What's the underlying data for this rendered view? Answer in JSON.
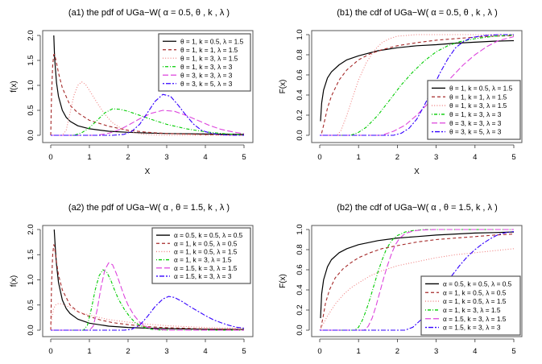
{
  "chart_data": [
    {
      "id": "a1",
      "type": "line",
      "title": "(a1) the pdf of UGa−W( α = 0.5, θ , k , λ )",
      "xlabel": "X",
      "ylabel": "f(x)",
      "xlim": [
        0,
        5
      ],
      "ylim": [
        0,
        2
      ],
      "xticks": [
        "0",
        "1",
        "2",
        "3",
        "4",
        "5"
      ],
      "yticks": [
        "0.0",
        "0.5",
        "1.0",
        "1.5",
        "2.0"
      ],
      "legend_position": "top-right",
      "series": [
        {
          "name": "θ = 1, k = 0.5, λ = 1.5",
          "color": "#000000",
          "dash": "solid",
          "x": [
            0.08,
            0.1,
            0.15,
            0.2,
            0.3,
            0.4,
            0.5,
            0.7,
            1.0,
            1.5,
            2,
            2.5,
            3,
            4,
            5
          ],
          "y": [
            2.0,
            1.55,
            1.05,
            0.78,
            0.5,
            0.36,
            0.28,
            0.19,
            0.13,
            0.08,
            0.06,
            0.045,
            0.035,
            0.025,
            0.02
          ]
        },
        {
          "name": "θ = 1, k = 1, λ = 1.5",
          "color": "#a52a2a",
          "dash": "dashed",
          "x": [
            0.0,
            0.02,
            0.05,
            0.08,
            0.1,
            0.15,
            0.2,
            0.3,
            0.5,
            0.7,
            1.0,
            1.5,
            2,
            2.5,
            3,
            4,
            5
          ],
          "y": [
            0,
            0.8,
            1.4,
            1.62,
            1.62,
            1.45,
            1.25,
            0.95,
            0.6,
            0.45,
            0.3,
            0.18,
            0.1,
            0.06,
            0.035,
            0.015,
            0.005
          ]
        },
        {
          "name": "θ = 1, k = 3, λ = 1.5",
          "color": "#f08080",
          "dash": "dotted",
          "x": [
            0,
            0.3,
            0.4,
            0.5,
            0.6,
            0.7,
            0.8,
            0.9,
            1.0,
            1.2,
            1.4,
            1.6,
            1.8,
            2.0,
            2.3,
            2.6,
            3,
            4,
            5
          ],
          "y": [
            0,
            0,
            0.1,
            0.45,
            0.8,
            1.0,
            1.07,
            1.02,
            0.9,
            0.65,
            0.42,
            0.25,
            0.15,
            0.08,
            0.03,
            0.01,
            0,
            0,
            0
          ]
        },
        {
          "name": "θ = 1, k = 3, λ = 3",
          "color": "#00cc00",
          "dash": "dotdash",
          "x": [
            0,
            0.6,
            0.8,
            1.0,
            1.2,
            1.4,
            1.6,
            1.8,
            2.0,
            2.3,
            2.6,
            3.0,
            3.5,
            4.0,
            4.5,
            5.0
          ],
          "y": [
            0,
            0,
            0.05,
            0.15,
            0.3,
            0.45,
            0.53,
            0.52,
            0.48,
            0.4,
            0.32,
            0.22,
            0.13,
            0.07,
            0.03,
            0.01
          ]
        },
        {
          "name": "θ = 3, k = 3, λ = 3",
          "color": "#dd44dd",
          "dash": "longdash",
          "x": [
            0,
            1.2,
            1.5,
            1.8,
            2.0,
            2.3,
            2.6,
            2.9,
            3.2,
            3.5,
            3.8,
            4.1,
            4.4,
            4.7,
            5.0
          ],
          "y": [
            0,
            0,
            0.04,
            0.12,
            0.2,
            0.33,
            0.44,
            0.5,
            0.48,
            0.4,
            0.3,
            0.2,
            0.12,
            0.07,
            0.03
          ]
        },
        {
          "name": "θ = 3, k = 5, λ = 3",
          "color": "#3300ff",
          "dash": "twodash",
          "x": [
            0,
            1.6,
            1.9,
            2.1,
            2.3,
            2.5,
            2.7,
            2.9,
            3.1,
            3.3,
            3.5,
            3.7,
            3.9,
            4.1,
            4.4,
            4.7,
            5.0
          ],
          "y": [
            0,
            0,
            0.02,
            0.08,
            0.22,
            0.45,
            0.68,
            0.82,
            0.78,
            0.6,
            0.4,
            0.22,
            0.1,
            0.05,
            0.01,
            0,
            0
          ]
        }
      ]
    },
    {
      "id": "b1",
      "type": "line",
      "title": "(b1) the cdf of UGa−W( α = 0.5, θ , k , λ )",
      "xlabel": "X",
      "ylabel": "F(x)",
      "xlim": [
        0,
        5
      ],
      "ylim": [
        0,
        1
      ],
      "xticks": [
        "0",
        "1",
        "2",
        "3",
        "4",
        "5"
      ],
      "yticks": [
        "0.0",
        "0.2",
        "0.4",
        "0.6",
        "0.8",
        "1.0"
      ],
      "legend_position": "bottom-right",
      "series": [
        {
          "name": "θ = 1, k = 0.5, λ = 1.5",
          "color": "#000000",
          "dash": "solid",
          "x": [
            0.02,
            0.05,
            0.1,
            0.2,
            0.3,
            0.5,
            0.7,
            1.0,
            1.5,
            2,
            2.5,
            3,
            3.5,
            4,
            4.5,
            5
          ],
          "y": [
            0.14,
            0.32,
            0.45,
            0.57,
            0.63,
            0.7,
            0.75,
            0.79,
            0.84,
            0.87,
            0.89,
            0.9,
            0.915,
            0.925,
            0.935,
            0.94
          ]
        },
        {
          "name": "θ = 1, k = 1, λ = 1.5",
          "color": "#a52a2a",
          "dash": "dashed",
          "x": [
            0.05,
            0.1,
            0.2,
            0.3,
            0.5,
            0.7,
            1.0,
            1.3,
            1.6,
            2,
            2.5,
            3,
            3.5,
            4,
            4.5,
            5
          ],
          "y": [
            0.02,
            0.1,
            0.27,
            0.39,
            0.55,
            0.65,
            0.75,
            0.81,
            0.85,
            0.89,
            0.92,
            0.945,
            0.96,
            0.975,
            0.985,
            0.99
          ]
        },
        {
          "name": "θ = 1, k = 3, λ = 1.5",
          "color": "#f08080",
          "dash": "dotted",
          "x": [
            0,
            0.45,
            0.55,
            0.7,
            0.85,
            1.0,
            1.2,
            1.4,
            1.6,
            1.8,
            2.0,
            2.5,
            3,
            4,
            5
          ],
          "y": [
            0,
            0,
            0.05,
            0.2,
            0.38,
            0.55,
            0.72,
            0.84,
            0.92,
            0.96,
            0.985,
            1.0,
            1.0,
            1.0,
            1.0
          ]
        },
        {
          "name": "θ = 1, k = 3, λ = 3",
          "color": "#00cc00",
          "dash": "dotdash",
          "x": [
            0,
            0.8,
            1.0,
            1.2,
            1.5,
            1.8,
            2.1,
            2.4,
            2.7,
            3.0,
            3.3,
            3.6,
            4.0,
            4.5,
            5.0
          ],
          "y": [
            0,
            0,
            0.03,
            0.08,
            0.2,
            0.35,
            0.5,
            0.63,
            0.74,
            0.83,
            0.89,
            0.93,
            0.96,
            0.985,
            0.995
          ]
        },
        {
          "name": "θ = 3, k = 3, λ = 3",
          "color": "#dd44dd",
          "dash": "longdash",
          "x": [
            0,
            1.6,
            1.9,
            2.2,
            2.5,
            2.8,
            3.1,
            3.4,
            3.7,
            4.0,
            4.3,
            4.6,
            5.0
          ],
          "y": [
            0,
            0,
            0.04,
            0.1,
            0.2,
            0.32,
            0.45,
            0.58,
            0.7,
            0.8,
            0.88,
            0.94,
            0.98
          ]
        },
        {
          "name": "θ = 3, k = 5, λ = 3",
          "color": "#3300ff",
          "dash": "twodash",
          "x": [
            0,
            1.9,
            2.1,
            2.3,
            2.5,
            2.7,
            2.9,
            3.1,
            3.3,
            3.5,
            3.7,
            3.9,
            4.2,
            4.6,
            5.0
          ],
          "y": [
            0,
            0,
            0.02,
            0.07,
            0.16,
            0.3,
            0.46,
            0.62,
            0.76,
            0.87,
            0.93,
            0.97,
            0.99,
            1.0,
            1.0
          ]
        }
      ]
    },
    {
      "id": "a2",
      "type": "line",
      "title": "(a2) the pdf of UGa−W( α , θ = 1.5, k , λ )",
      "xlabel": "",
      "ylabel": "f(x)",
      "xlim": [
        0,
        5
      ],
      "ylim": [
        0,
        2
      ],
      "xticks": [
        "0",
        "1",
        "2",
        "3",
        "4",
        "5"
      ],
      "yticks": [
        "0.0",
        "0.5",
        "1.0",
        "1.5",
        "2.0"
      ],
      "legend_position": "top-right",
      "series": [
        {
          "name": "α = 0.5, k = 0.5, λ = 0.5",
          "color": "#000000",
          "dash": "solid",
          "x": [
            0.09,
            0.12,
            0.15,
            0.2,
            0.3,
            0.4,
            0.5,
            0.7,
            1.0,
            1.5,
            2,
            2.5,
            3,
            4,
            5
          ],
          "y": [
            2.0,
            1.6,
            1.3,
            0.95,
            0.6,
            0.43,
            0.33,
            0.22,
            0.14,
            0.08,
            0.055,
            0.04,
            0.03,
            0.02,
            0.015
          ]
        },
        {
          "name": "α = 1, k = 0.5, λ = 0.5",
          "color": "#a52a2a",
          "dash": "dashed",
          "x": [
            0.0,
            0.02,
            0.05,
            0.08,
            0.1,
            0.15,
            0.2,
            0.3,
            0.5,
            0.7,
            1.0,
            1.3,
            1.6,
            2,
            2.5,
            3,
            4,
            5
          ],
          "y": [
            0,
            0.9,
            1.5,
            1.7,
            1.65,
            1.35,
            1.1,
            0.8,
            0.5,
            0.37,
            0.27,
            0.2,
            0.15,
            0.11,
            0.07,
            0.05,
            0.025,
            0.015
          ]
        },
        {
          "name": "α = 1, k = 0.5, λ = 1.5",
          "color": "#f08080",
          "dash": "dotted",
          "x": [
            0.0,
            0.03,
            0.07,
            0.12,
            0.2,
            0.3,
            0.5,
            0.7,
            1.0,
            1.5,
            2,
            2.5,
            3,
            3.5,
            4,
            4.5,
            5
          ],
          "y": [
            0,
            0.25,
            0.42,
            0.5,
            0.53,
            0.52,
            0.45,
            0.37,
            0.3,
            0.21,
            0.16,
            0.12,
            0.09,
            0.07,
            0.055,
            0.045,
            0.04
          ]
        },
        {
          "name": "α = 1, k = 3, λ = 1.5",
          "color": "#00cc00",
          "dash": "dotdash",
          "x": [
            0,
            0.85,
            0.95,
            1.05,
            1.15,
            1.25,
            1.35,
            1.45,
            1.55,
            1.65,
            1.75,
            1.9,
            2.05,
            2.2,
            2.4,
            2.6,
            2.9,
            3.3,
            5
          ],
          "y": [
            0,
            0,
            0.1,
            0.42,
            0.8,
            1.08,
            1.2,
            1.15,
            1.0,
            0.8,
            0.62,
            0.42,
            0.26,
            0.14,
            0.06,
            0.02,
            0,
            0,
            0
          ]
        },
        {
          "name": "α = 1.5, k = 3, λ = 1.5",
          "color": "#dd44dd",
          "dash": "longdash",
          "x": [
            0,
            1.0,
            1.1,
            1.2,
            1.3,
            1.4,
            1.5,
            1.6,
            1.7,
            1.8,
            1.9,
            2.0,
            2.15,
            2.3,
            2.5,
            2.7,
            3.0,
            3.5,
            5
          ],
          "y": [
            0,
            0,
            0.08,
            0.4,
            0.85,
            1.2,
            1.34,
            1.3,
            1.12,
            0.9,
            0.68,
            0.5,
            0.3,
            0.16,
            0.06,
            0.02,
            0,
            0,
            0
          ]
        },
        {
          "name": "α = 1.5, k = 3, λ = 3",
          "color": "#3300ff",
          "dash": "twodash",
          "x": [
            0,
            1.9,
            2.1,
            2.3,
            2.5,
            2.7,
            2.9,
            3.05,
            3.2,
            3.4,
            3.6,
            3.8,
            4.0,
            4.2,
            4.4,
            4.6,
            4.8,
            5.0
          ],
          "y": [
            0,
            0,
            0.02,
            0.1,
            0.27,
            0.47,
            0.62,
            0.67,
            0.65,
            0.57,
            0.47,
            0.38,
            0.29,
            0.21,
            0.15,
            0.1,
            0.06,
            0.04
          ]
        }
      ]
    },
    {
      "id": "b2",
      "type": "line",
      "title": "(b2) the cdf of UGa−W( α , θ = 1.5, k , λ )",
      "xlabel": "",
      "ylabel": "F(x)",
      "xlim": [
        0,
        5
      ],
      "ylim": [
        0,
        1
      ],
      "xticks": [
        "0",
        "1",
        "2",
        "3",
        "4",
        "5"
      ],
      "yticks": [
        "0.0",
        "0.2",
        "0.4",
        "0.6",
        "0.8",
        "1.0"
      ],
      "legend_position": "bottom-right",
      "series": [
        {
          "name": "α = 0.5, k = 0.5, λ = 0.5",
          "color": "#000000",
          "dash": "solid",
          "x": [
            0.02,
            0.05,
            0.1,
            0.2,
            0.3,
            0.5,
            0.7,
            1.0,
            1.5,
            2,
            2.5,
            3,
            3.5,
            4,
            4.5,
            5
          ],
          "y": [
            0.12,
            0.36,
            0.5,
            0.63,
            0.7,
            0.77,
            0.81,
            0.85,
            0.89,
            0.915,
            0.93,
            0.945,
            0.955,
            0.965,
            0.97,
            0.975
          ]
        },
        {
          "name": "α = 1, k = 0.5, λ = 0.5",
          "color": "#a52a2a",
          "dash": "dashed",
          "x": [
            0.03,
            0.08,
            0.15,
            0.25,
            0.4,
            0.6,
            0.8,
            1.0,
            1.3,
            1.6,
            2,
            2.5,
            3,
            3.5,
            4,
            4.5,
            5
          ],
          "y": [
            0.02,
            0.12,
            0.27,
            0.4,
            0.52,
            0.61,
            0.67,
            0.72,
            0.77,
            0.81,
            0.84,
            0.875,
            0.9,
            0.915,
            0.93,
            0.945,
            0.955
          ]
        },
        {
          "name": "α = 1, k = 0.5, λ = 1.5",
          "color": "#f08080",
          "dash": "dotted",
          "x": [
            0.0,
            0.1,
            0.2,
            0.4,
            0.6,
            0.8,
            1.0,
            1.3,
            1.6,
            2,
            2.5,
            3,
            3.5,
            4,
            4.5,
            5
          ],
          "y": [
            0,
            0.07,
            0.14,
            0.26,
            0.35,
            0.42,
            0.47,
            0.54,
            0.59,
            0.64,
            0.68,
            0.72,
            0.75,
            0.77,
            0.79,
            0.81
          ]
        },
        {
          "name": "α = 1, k = 3, λ = 1.5",
          "color": "#00cc00",
          "dash": "dotdash",
          "x": [
            0,
            0.9,
            1.0,
            1.1,
            1.2,
            1.3,
            1.4,
            1.5,
            1.6,
            1.7,
            1.8,
            1.9,
            2.0,
            2.2,
            2.4,
            2.7,
            3.0,
            5
          ],
          "y": [
            0,
            0,
            0.03,
            0.1,
            0.2,
            0.32,
            0.45,
            0.58,
            0.69,
            0.79,
            0.86,
            0.91,
            0.94,
            0.975,
            0.99,
            1.0,
            1.0,
            1.0
          ]
        },
        {
          "name": "α = 1.5, k = 3, λ = 1.5",
          "color": "#dd44dd",
          "dash": "longdash",
          "x": [
            0,
            1.15,
            1.25,
            1.35,
            1.45,
            1.55,
            1.65,
            1.75,
            1.85,
            1.95,
            2.05,
            2.2,
            2.4,
            2.6,
            3.0,
            5
          ],
          "y": [
            0,
            0,
            0.04,
            0.12,
            0.24,
            0.38,
            0.52,
            0.65,
            0.76,
            0.85,
            0.91,
            0.96,
            0.985,
            0.995,
            1.0,
            1.0
          ]
        },
        {
          "name": "α = 1.5, k = 3, λ = 3",
          "color": "#3300ff",
          "dash": "twodash",
          "x": [
            0,
            2.2,
            2.4,
            2.6,
            2.8,
            3.0,
            3.2,
            3.4,
            3.6,
            3.8,
            4.0,
            4.2,
            4.4,
            4.6,
            4.8,
            5.0
          ],
          "y": [
            0,
            0,
            0.03,
            0.1,
            0.2,
            0.32,
            0.43,
            0.54,
            0.64,
            0.73,
            0.8,
            0.86,
            0.91,
            0.95,
            0.97,
            0.98
          ]
        }
      ]
    }
  ]
}
